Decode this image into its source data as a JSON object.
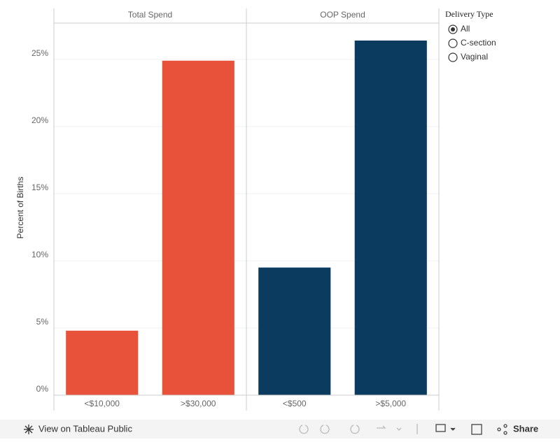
{
  "chart_data": {
    "type": "bar",
    "y_label": "Percent of Births",
    "ylim": [
      0,
      27.7
    ],
    "yticks": [
      {
        "value": 0,
        "label": "0%"
      },
      {
        "value": 5,
        "label": "5%"
      },
      {
        "value": 10,
        "label": "10%"
      },
      {
        "value": 15,
        "label": "15%"
      },
      {
        "value": 20,
        "label": "20%"
      },
      {
        "value": 25,
        "label": "25%"
      }
    ],
    "grid": true,
    "panels": [
      {
        "title": "Total Spend",
        "categories": [
          "<$10,000",
          ">$30,000"
        ],
        "values": [
          4.8,
          24.9
        ],
        "color": "#e8523a"
      },
      {
        "title": "OOP Spend",
        "categories": [
          "<$500",
          ">$5,000"
        ],
        "values": [
          9.5,
          26.4
        ],
        "color": "#0b3b5e"
      }
    ]
  },
  "filter": {
    "title": "Delivery Type",
    "options": [
      "All",
      "C-section",
      "Vaginal"
    ],
    "selected": 0
  },
  "toolbar": {
    "view": "View on Tableau Public",
    "share": "Share"
  }
}
